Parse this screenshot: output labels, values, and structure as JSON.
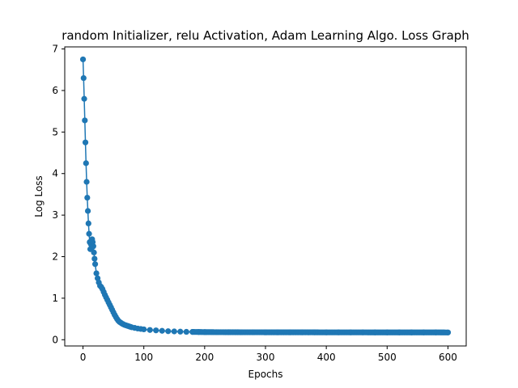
{
  "chart_data": {
    "type": "line",
    "title": "random Initializer, relu Activation, Adam Learning Algo. Loss Graph",
    "xlabel": "Epochs",
    "ylabel": "Log Loss",
    "xlim": [
      -30,
      630
    ],
    "ylim": [
      -0.15,
      7.05
    ],
    "xticks": [
      0,
      100,
      200,
      300,
      400,
      500,
      600
    ],
    "yticks": [
      0,
      1,
      2,
      3,
      4,
      5,
      6,
      7
    ],
    "grid": false,
    "legend": "none",
    "series": [
      {
        "color": "#1f77b4",
        "marker": "circle",
        "x": [
          0,
          1,
          2,
          3,
          4,
          5,
          6,
          7,
          8,
          9,
          10,
          11,
          12,
          13,
          14,
          15,
          16,
          17,
          18,
          19,
          20,
          22,
          24,
          26,
          28,
          30,
          32,
          34,
          36,
          38,
          40,
          42,
          44,
          46,
          48,
          50,
          52,
          54,
          56,
          58,
          60,
          62,
          64,
          66,
          68,
          70,
          72,
          74,
          76,
          78,
          80,
          85,
          90,
          95,
          100,
          110,
          120,
          130,
          140,
          150,
          160,
          170,
          180,
          190,
          200,
          220,
          240,
          260,
          280,
          300,
          320,
          340,
          360,
          380,
          400,
          420,
          440,
          460,
          480,
          500,
          520,
          540,
          560,
          580,
          600
        ],
        "y": [
          6.75,
          6.3,
          5.8,
          5.28,
          4.75,
          4.25,
          3.8,
          3.42,
          3.1,
          2.8,
          2.55,
          2.35,
          2.18,
          2.3,
          2.38,
          2.42,
          2.35,
          2.25,
          2.1,
          1.95,
          1.82,
          1.6,
          1.48,
          1.38,
          1.3,
          1.27,
          1.22,
          1.15,
          1.08,
          1.02,
          0.96,
          0.9,
          0.84,
          0.78,
          0.72,
          0.66,
          0.6,
          0.55,
          0.5,
          0.46,
          0.43,
          0.41,
          0.39,
          0.375,
          0.36,
          0.35,
          0.34,
          0.33,
          0.32,
          0.31,
          0.3,
          0.285,
          0.27,
          0.26,
          0.25,
          0.235,
          0.225,
          0.215,
          0.205,
          0.2,
          0.195,
          0.19,
          0.188,
          0.186,
          0.184,
          0.182,
          0.181,
          0.18,
          0.18,
          0.179,
          0.179,
          0.178,
          0.178,
          0.178,
          0.177,
          0.177,
          0.177,
          0.177,
          0.176,
          0.176,
          0.176,
          0.176,
          0.176,
          0.176,
          0.175
        ]
      }
    ]
  }
}
